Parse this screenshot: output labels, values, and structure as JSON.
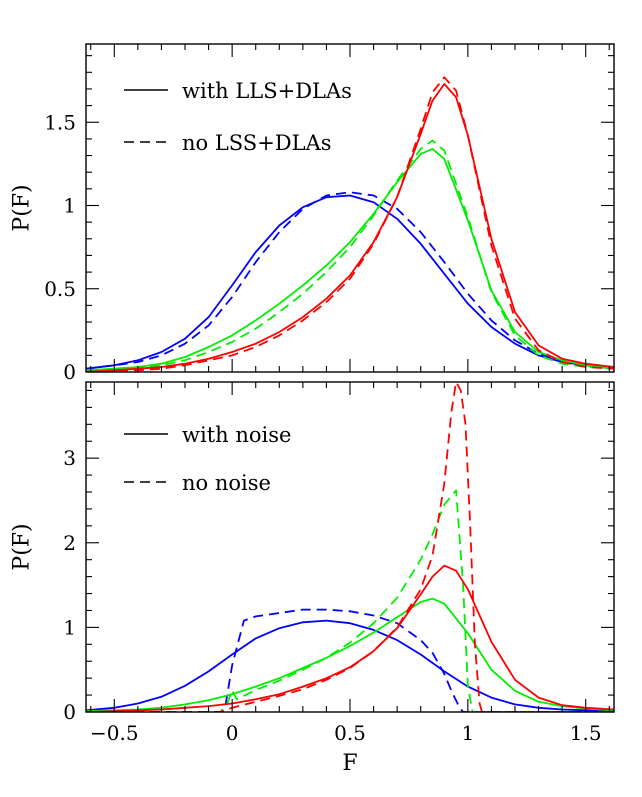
{
  "chart_data": [
    {
      "type": "line",
      "title": "",
      "xlabel": "",
      "ylabel": "P(F)",
      "xlim": [
        -0.62,
        1.62
      ],
      "ylim": [
        0,
        1.97
      ],
      "grid": false,
      "legend_position": "top-left",
      "legend": [
        {
          "label": "with LLS+DLAs",
          "style": "solid"
        },
        {
          "label": "no LSS+DLAs",
          "style": "dashed"
        }
      ],
      "y_ticks": [
        {
          "v": 0,
          "label": "0"
        },
        {
          "v": 0.5,
          "label": "0.5"
        },
        {
          "v": 1,
          "label": "1"
        },
        {
          "v": 1.5,
          "label": "1.5"
        }
      ],
      "y_minor_step": 0.1,
      "x_minor_step": 0.1,
      "series": [
        {
          "color": "#0000ff",
          "style": "solid",
          "x": [
            -0.62,
            -0.5,
            -0.4,
            -0.3,
            -0.2,
            -0.1,
            0,
            0.1,
            0.2,
            0.3,
            0.4,
            0.5,
            0.6,
            0.7,
            0.8,
            0.9,
            1.0,
            1.1,
            1.2,
            1.3,
            1.4,
            1.5,
            1.62
          ],
          "y": [
            0.02,
            0.04,
            0.07,
            0.12,
            0.2,
            0.33,
            0.52,
            0.72,
            0.88,
            0.99,
            1.05,
            1.06,
            1.02,
            0.92,
            0.77,
            0.59,
            0.41,
            0.27,
            0.17,
            0.1,
            0.06,
            0.04,
            0.02
          ]
        },
        {
          "color": "#0000ff",
          "style": "dashed",
          "x": [
            -0.62,
            -0.5,
            -0.4,
            -0.3,
            -0.2,
            -0.1,
            0,
            0.1,
            0.2,
            0.3,
            0.4,
            0.5,
            0.6,
            0.7,
            0.8,
            0.9,
            1.0,
            1.1,
            1.2,
            1.3,
            1.4,
            1.5,
            1.62
          ],
          "y": [
            0.02,
            0.04,
            0.06,
            0.1,
            0.17,
            0.28,
            0.45,
            0.66,
            0.84,
            0.98,
            1.06,
            1.08,
            1.06,
            0.98,
            0.84,
            0.66,
            0.47,
            0.31,
            0.19,
            0.11,
            0.07,
            0.04,
            0.02
          ]
        },
        {
          "color": "#00ee00",
          "style": "solid",
          "x": [
            -0.62,
            -0.5,
            -0.4,
            -0.3,
            -0.2,
            -0.1,
            0,
            0.1,
            0.2,
            0.3,
            0.4,
            0.5,
            0.6,
            0.7,
            0.8,
            0.85,
            0.9,
            1.0,
            1.1,
            1.2,
            1.3,
            1.4,
            1.5,
            1.62
          ],
          "y": [
            0.01,
            0.02,
            0.03,
            0.05,
            0.09,
            0.15,
            0.22,
            0.31,
            0.41,
            0.52,
            0.64,
            0.78,
            0.95,
            1.14,
            1.31,
            1.34,
            1.28,
            0.91,
            0.49,
            0.24,
            0.12,
            0.07,
            0.04,
            0.02
          ]
        },
        {
          "color": "#00ee00",
          "style": "dashed",
          "x": [
            -0.62,
            -0.5,
            -0.4,
            -0.3,
            -0.2,
            -0.1,
            0,
            0.1,
            0.2,
            0.3,
            0.4,
            0.5,
            0.6,
            0.7,
            0.8,
            0.85,
            0.9,
            1.0,
            1.1,
            1.2,
            1.3,
            1.4,
            1.5,
            1.62
          ],
          "y": [
            0.01,
            0.01,
            0.02,
            0.04,
            0.07,
            0.12,
            0.18,
            0.26,
            0.36,
            0.47,
            0.6,
            0.75,
            0.94,
            1.15,
            1.34,
            1.39,
            1.33,
            0.93,
            0.48,
            0.22,
            0.1,
            0.05,
            0.03,
            0.02
          ]
        },
        {
          "color": "#ff0000",
          "style": "solid",
          "x": [
            -0.62,
            -0.5,
            -0.4,
            -0.3,
            -0.2,
            -0.1,
            0,
            0.1,
            0.2,
            0.3,
            0.4,
            0.5,
            0.6,
            0.7,
            0.8,
            0.85,
            0.9,
            0.95,
            1.0,
            1.1,
            1.2,
            1.3,
            1.4,
            1.5,
            1.62
          ],
          "y": [
            0,
            0.01,
            0.02,
            0.03,
            0.05,
            0.08,
            0.12,
            0.17,
            0.24,
            0.33,
            0.44,
            0.58,
            0.78,
            1.05,
            1.43,
            1.63,
            1.73,
            1.65,
            1.42,
            0.8,
            0.36,
            0.16,
            0.08,
            0.05,
            0.03
          ]
        },
        {
          "color": "#ff0000",
          "style": "dashed",
          "x": [
            -0.62,
            -0.5,
            -0.4,
            -0.3,
            -0.2,
            -0.1,
            0,
            0.1,
            0.2,
            0.3,
            0.4,
            0.5,
            0.6,
            0.7,
            0.8,
            0.85,
            0.9,
            0.95,
            1.0,
            1.1,
            1.2,
            1.3,
            1.4,
            1.5,
            1.62
          ],
          "y": [
            0,
            0.01,
            0.01,
            0.02,
            0.04,
            0.07,
            0.1,
            0.15,
            0.22,
            0.31,
            0.42,
            0.56,
            0.77,
            1.05,
            1.46,
            1.68,
            1.77,
            1.69,
            1.42,
            0.76,
            0.32,
            0.13,
            0.06,
            0.03,
            0.02
          ]
        }
      ]
    },
    {
      "type": "line",
      "title": "",
      "xlabel": "F",
      "ylabel": "P(F)",
      "xlim": [
        -0.62,
        1.62
      ],
      "ylim": [
        0,
        3.9
      ],
      "grid": false,
      "legend_position": "top-left",
      "legend": [
        {
          "label": "with noise",
          "style": "solid"
        },
        {
          "label": "no noise",
          "style": "dashed"
        }
      ],
      "x_ticks": [
        {
          "v": -0.5,
          "label": "−0.5"
        },
        {
          "v": 0,
          "label": "0"
        },
        {
          "v": 0.5,
          "label": "0.5"
        },
        {
          "v": 1,
          "label": "1"
        },
        {
          "v": 1.5,
          "label": "1.5"
        }
      ],
      "y_ticks": [
        {
          "v": 0,
          "label": "0"
        },
        {
          "v": 1,
          "label": "1"
        },
        {
          "v": 2,
          "label": "2"
        },
        {
          "v": 3,
          "label": "3"
        }
      ],
      "y_minor_step": 0.2,
      "x_minor_step": 0.1,
      "series": [
        {
          "color": "#0000ff",
          "style": "solid",
          "x": [
            -0.62,
            -0.5,
            -0.4,
            -0.3,
            -0.2,
            -0.1,
            0,
            0.1,
            0.2,
            0.3,
            0.4,
            0.5,
            0.6,
            0.7,
            0.8,
            0.9,
            1.0,
            1.1,
            1.2,
            1.3,
            1.4,
            1.5,
            1.62
          ],
          "y": [
            0.02,
            0.05,
            0.1,
            0.18,
            0.31,
            0.48,
            0.68,
            0.87,
            0.99,
            1.06,
            1.08,
            1.05,
            0.97,
            0.85,
            0.68,
            0.48,
            0.3,
            0.17,
            0.09,
            0.05,
            0.03,
            0.02,
            0.01
          ]
        },
        {
          "color": "#0000ff",
          "style": "dashed",
          "x": [
            -0.62,
            -0.05,
            -0.03,
            0,
            0.05,
            0.1,
            0.2,
            0.3,
            0.4,
            0.5,
            0.6,
            0.7,
            0.8,
            0.85,
            0.9,
            0.93,
            0.96,
            0.98,
            1.62
          ],
          "y": [
            0,
            0,
            0.05,
            0.55,
            1.08,
            1.13,
            1.17,
            1.21,
            1.21,
            1.19,
            1.14,
            1.05,
            0.85,
            0.7,
            0.45,
            0.25,
            0.08,
            0,
            0
          ]
        },
        {
          "color": "#00ee00",
          "style": "solid",
          "x": [
            -0.62,
            -0.5,
            -0.4,
            -0.3,
            -0.2,
            -0.1,
            0,
            0.1,
            0.2,
            0.3,
            0.4,
            0.5,
            0.6,
            0.7,
            0.8,
            0.85,
            0.9,
            1.0,
            1.1,
            1.2,
            1.3,
            1.4,
            1.5,
            1.62
          ],
          "y": [
            0.01,
            0.02,
            0.03,
            0.05,
            0.09,
            0.14,
            0.21,
            0.3,
            0.4,
            0.52,
            0.64,
            0.78,
            0.94,
            1.12,
            1.3,
            1.34,
            1.28,
            0.93,
            0.5,
            0.25,
            0.12,
            0.07,
            0.04,
            0.02
          ]
        },
        {
          "color": "#00ee00",
          "style": "dashed",
          "x": [
            -0.62,
            -0.05,
            -0.02,
            0,
            0.02,
            0.1,
            0.2,
            0.3,
            0.4,
            0.5,
            0.6,
            0.7,
            0.8,
            0.85,
            0.9,
            0.95,
            0.98,
            1.0,
            1.02,
            1.62
          ],
          "y": [
            0,
            0,
            0.1,
            0.25,
            0.15,
            0.26,
            0.37,
            0.5,
            0.64,
            0.82,
            1.05,
            1.35,
            1.8,
            2.1,
            2.45,
            2.62,
            1.5,
            0.3,
            0,
            0
          ]
        },
        {
          "color": "#ff0000",
          "style": "solid",
          "x": [
            -0.62,
            -0.5,
            -0.4,
            -0.3,
            -0.2,
            -0.1,
            0,
            0.1,
            0.2,
            0.3,
            0.4,
            0.5,
            0.6,
            0.7,
            0.8,
            0.85,
            0.9,
            0.95,
            1.0,
            1.1,
            1.2,
            1.3,
            1.4,
            1.5,
            1.62
          ],
          "y": [
            0,
            0.01,
            0.02,
            0.03,
            0.05,
            0.07,
            0.1,
            0.15,
            0.21,
            0.3,
            0.4,
            0.53,
            0.72,
            0.99,
            1.39,
            1.6,
            1.73,
            1.67,
            1.45,
            0.83,
            0.38,
            0.17,
            0.08,
            0.05,
            0.03
          ]
        },
        {
          "color": "#ff0000",
          "style": "dashed",
          "x": [
            -0.62,
            -0.05,
            0,
            0.1,
            0.2,
            0.3,
            0.4,
            0.5,
            0.6,
            0.7,
            0.8,
            0.85,
            0.9,
            0.93,
            0.95,
            0.97,
            0.99,
            1.01,
            1.03,
            1.05,
            1.06,
            1.62
          ],
          "y": [
            0,
            0,
            0.05,
            0.12,
            0.19,
            0.27,
            0.38,
            0.52,
            0.72,
            1.0,
            1.45,
            1.85,
            2.7,
            3.55,
            3.9,
            3.8,
            3.4,
            2.2,
            0.8,
            0.1,
            0,
            0
          ]
        }
      ]
    }
  ]
}
